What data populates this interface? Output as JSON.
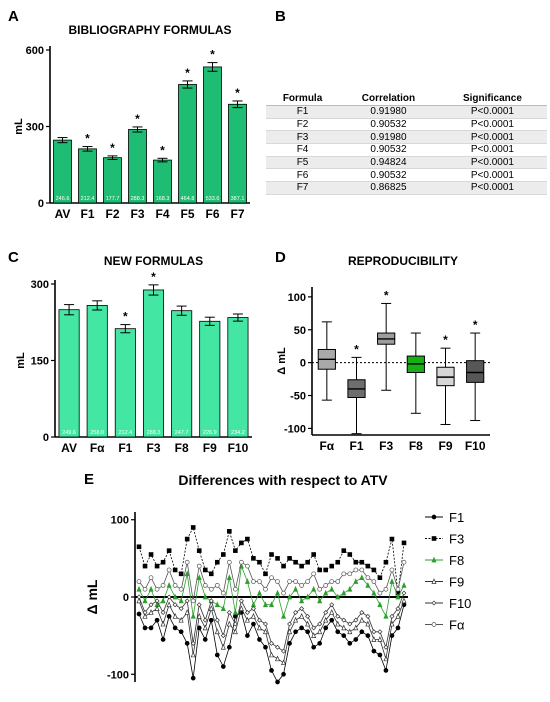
{
  "panel_letters": {
    "a": "A",
    "b": "B",
    "c": "C",
    "d": "D",
    "e": "E"
  },
  "table": {
    "headers": [
      "Formula",
      "Correlation",
      "Significance"
    ],
    "rows": [
      [
        "F1",
        "0.91980",
        "P<0.0001"
      ],
      [
        "F2",
        "0.90532",
        "P<0.0001"
      ],
      [
        "F3",
        "0.91980",
        "P<0.0001"
      ],
      [
        "F4",
        "0.90532",
        "P<0.0001"
      ],
      [
        "F5",
        "0.94824",
        "P<0.0001"
      ],
      [
        "F6",
        "0.90532",
        "P<0.0001"
      ],
      [
        "F7",
        "0.86825",
        "P<0.0001"
      ]
    ]
  },
  "chart_data": [
    {
      "id": "A",
      "type": "bar",
      "title": "BIBLIOGRAPHY FORMULAS",
      "ylabel": "mL",
      "ylim": [
        0,
        600
      ],
      "yticks": [
        0,
        300,
        600
      ],
      "categories": [
        "AV",
        "F1",
        "F2",
        "F3",
        "F4",
        "F5",
        "F6",
        "F7"
      ],
      "values": [
        246.6,
        212.4,
        177.7,
        288.3,
        168.3,
        464.8,
        533.6,
        387.1
      ],
      "errors": [
        10,
        9,
        7,
        10,
        7,
        14,
        17,
        13
      ],
      "data_labels": [
        "246.6",
        "212.4",
        "177.7",
        "288.3",
        "168.3",
        "464.8",
        "533.6",
        "387.1"
      ],
      "significant": [
        false,
        true,
        true,
        true,
        true,
        true,
        true,
        true
      ],
      "bar_color": "#1ebd73"
    },
    {
      "id": "C",
      "type": "bar",
      "title": "NEW FORMULAS",
      "ylabel": "mL",
      "ylim": [
        0,
        300
      ],
      "yticks": [
        0,
        150,
        300
      ],
      "categories": [
        "AV",
        "Fα",
        "F1",
        "F3",
        "F8",
        "F9",
        "F10"
      ],
      "values": [
        249.6,
        258.0,
        212.4,
        288.3,
        247.7,
        226.9,
        234.2
      ],
      "errors": [
        10,
        9,
        8,
        10,
        9,
        8,
        7
      ],
      "data_labels": [
        "249.6",
        "258.0",
        "212.4",
        "288.3",
        "247.7",
        "226.9",
        "234.2"
      ],
      "significant": [
        false,
        false,
        true,
        true,
        false,
        false,
        false
      ],
      "bar_color": "#44e6a4"
    },
    {
      "id": "D",
      "type": "box",
      "title": "REPRODUCIBILITY",
      "ylabel": "Δ mL",
      "ylim": [
        -110,
        115
      ],
      "yticks": [
        -100,
        -50,
        0,
        50,
        100
      ],
      "reference_line": 0,
      "categories": [
        "Fα",
        "F1",
        "F3",
        "F8",
        "F9",
        "F10"
      ],
      "boxes": [
        {
          "min": -57,
          "q1": -10,
          "median": 5,
          "q3": 20,
          "max": 62
        },
        {
          "min": -108,
          "q1": -53,
          "median": -40,
          "q3": -26,
          "max": 8
        },
        {
          "min": -42,
          "q1": 28,
          "median": 36,
          "q3": 45,
          "max": 90
        },
        {
          "min": -77,
          "q1": -15,
          "median": -2,
          "q3": 10,
          "max": 45
        },
        {
          "min": -94,
          "q1": -35,
          "median": -22,
          "q3": -7,
          "max": 22
        },
        {
          "min": -88,
          "q1": -30,
          "median": -15,
          "q3": 3,
          "max": 45
        }
      ],
      "significant": [
        false,
        true,
        true,
        false,
        true,
        true
      ],
      "colors": [
        "#a9a9a9",
        "#6e6e6e",
        "#9d9d9d",
        "#16b016",
        "#d6d6d6",
        "#575757"
      ]
    },
    {
      "id": "E",
      "type": "line",
      "title": "Differences with respect to ATV",
      "ylabel": "Δ mL",
      "ylim": [
        -110,
        110
      ],
      "yticks": [
        -100,
        0,
        100
      ],
      "x_count": 45,
      "series": [
        {
          "name": "F1",
          "values": [
            -22,
            -40,
            -40,
            -30,
            -55,
            -25,
            -40,
            -45,
            -60,
            -105,
            -40,
            -55,
            -30,
            -75,
            -90,
            -65,
            -25,
            -20,
            -50,
            -35,
            -55,
            -65,
            -95,
            -110,
            -100,
            -60,
            -45,
            -40,
            -45,
            -65,
            -60,
            -40,
            -30,
            -45,
            -50,
            -60,
            -55,
            -45,
            -50,
            -70,
            -75,
            -95,
            -50,
            -40,
            -10
          ]
        },
        {
          "name": "F3",
          "values": [
            65,
            40,
            55,
            40,
            45,
            60,
            35,
            30,
            75,
            90,
            60,
            35,
            30,
            45,
            55,
            85,
            60,
            70,
            75,
            50,
            45,
            30,
            55,
            50,
            40,
            50,
            45,
            40,
            45,
            55,
            35,
            35,
            40,
            45,
            60,
            55,
            45,
            45,
            40,
            35,
            25,
            45,
            75,
            5,
            70
          ]
        },
        {
          "name": "F8",
          "values": [
            10,
            -5,
            10,
            -10,
            -5,
            15,
            0,
            -5,
            30,
            -25,
            25,
            0,
            -5,
            -10,
            -15,
            25,
            -20,
            40,
            20,
            -10,
            5,
            -10,
            -10,
            5,
            -25,
            0,
            10,
            -5,
            0,
            10,
            -5,
            5,
            10,
            0,
            5,
            10,
            20,
            25,
            15,
            5,
            -10,
            -25,
            20,
            0,
            15
          ]
        },
        {
          "name": "F9",
          "values": [
            -5,
            -25,
            -20,
            -15,
            -35,
            -10,
            -25,
            -30,
            -20,
            -75,
            -25,
            -40,
            -15,
            -45,
            -65,
            -35,
            -45,
            -15,
            -30,
            -25,
            -40,
            -45,
            -75,
            -80,
            -85,
            -45,
            -30,
            -25,
            -35,
            -50,
            -45,
            -30,
            -20,
            -35,
            -40,
            -45,
            -40,
            -30,
            -35,
            -55,
            -55,
            -80,
            -35,
            -25,
            -5
          ]
        },
        {
          "name": "F10",
          "values": [
            0,
            -20,
            -10,
            -5,
            -20,
            0,
            -10,
            -15,
            -5,
            -60,
            -10,
            -30,
            -5,
            -30,
            -50,
            -20,
            -35,
            -5,
            -20,
            -15,
            -30,
            -35,
            -60,
            -65,
            -70,
            -35,
            -20,
            -15,
            -25,
            -40,
            -35,
            -20,
            -10,
            -25,
            -30,
            -35,
            -30,
            -20,
            -25,
            -45,
            -45,
            -65,
            -25,
            -15,
            5
          ]
        },
        {
          "name": "Fα",
          "values": [
            20,
            10,
            25,
            10,
            15,
            35,
            15,
            10,
            45,
            -5,
            40,
            15,
            10,
            15,
            5,
            45,
            10,
            45,
            40,
            20,
            20,
            10,
            25,
            20,
            5,
            20,
            20,
            15,
            20,
            30,
            10,
            15,
            20,
            20,
            30,
            30,
            35,
            35,
            25,
            20,
            5,
            10,
            35,
            10,
            45
          ]
        }
      ]
    }
  ]
}
